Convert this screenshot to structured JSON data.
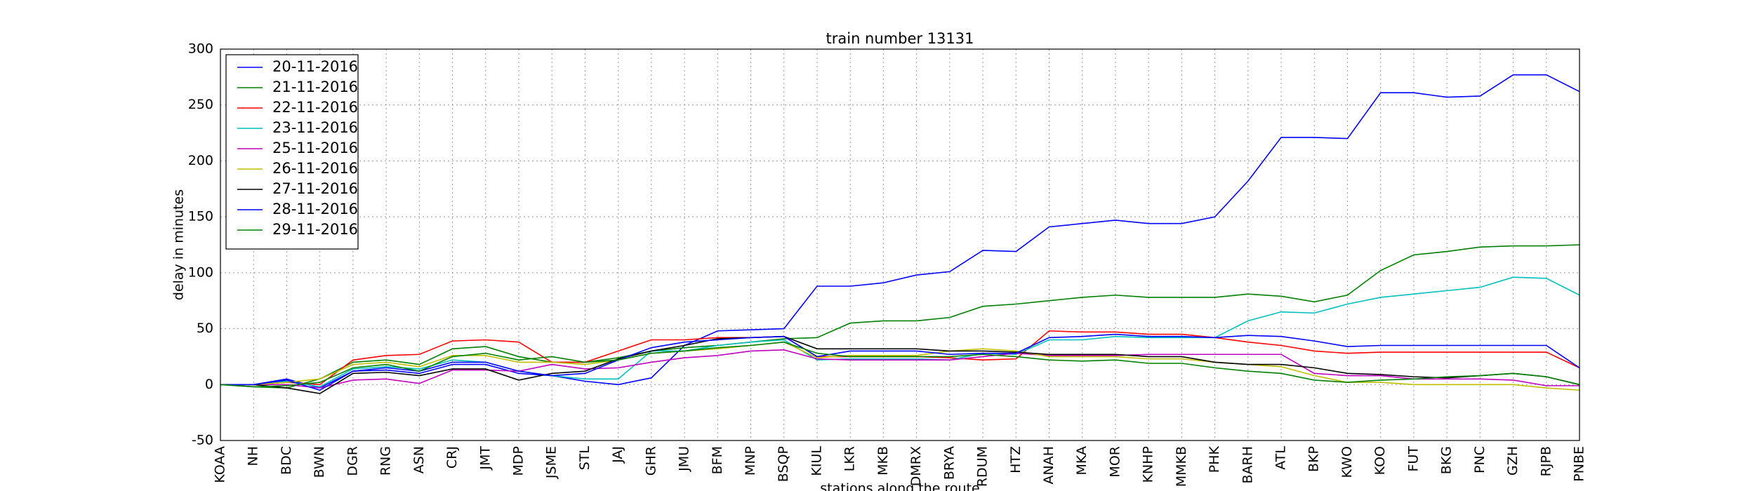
{
  "chart_data": {
    "type": "line",
    "title": "train number 13131",
    "xlabel": "stations along the route",
    "ylabel": "delay in minutes",
    "categories": [
      "KOAA",
      "NH",
      "BDC",
      "BWN",
      "DGR",
      "RNG",
      "ASN",
      "CRJ",
      "JMT",
      "MDP",
      "JSME",
      "STL",
      "JAJ",
      "GHR",
      "JMU",
      "BFM",
      "MNP",
      "BSQP",
      "KIUL",
      "LKR",
      "MKB",
      "DMRX",
      "BRYA",
      "RDUM",
      "HTZ",
      "ANAH",
      "MKA",
      "MOR",
      "KNHP",
      "MMKB",
      "PHK",
      "BARH",
      "ATL",
      "BKP",
      "KWO",
      "KOO",
      "FUT",
      "BKG",
      "PNC",
      "GZH",
      "RJPB",
      "PNBE"
    ],
    "series": [
      {
        "name": "20-11-2016",
        "color": "#0000ff",
        "values": [
          0,
          0,
          5,
          -3,
          12,
          13,
          10,
          18,
          18,
          10,
          8,
          3,
          0,
          6,
          35,
          48,
          49,
          50,
          88,
          88,
          91,
          98,
          101,
          120,
          119,
          141,
          144,
          147,
          144,
          144,
          150,
          182,
          221,
          221,
          220,
          261,
          261,
          257,
          258,
          277,
          277,
          262
        ]
      },
      {
        "name": "21-11-2016",
        "color": "#008000",
        "values": [
          0,
          -2,
          -3,
          5,
          20,
          22,
          18,
          32,
          34,
          25,
          20,
          20,
          24,
          30,
          33,
          35,
          38,
          41,
          42,
          55,
          57,
          57,
          60,
          70,
          72,
          75,
          78,
          80,
          78,
          78,
          78,
          81,
          79,
          74,
          80,
          102,
          116,
          119,
          123,
          124,
          124,
          125
        ]
      },
      {
        "name": "22-11-2016",
        "color": "#ff0000",
        "values": [
          0,
          0,
          2,
          0,
          22,
          26,
          27,
          39,
          40,
          38,
          20,
          20,
          30,
          40,
          40,
          42,
          42,
          43,
          25,
          25,
          25,
          25,
          24,
          22,
          23,
          48,
          47,
          47,
          45,
          45,
          42,
          38,
          35,
          30,
          28,
          29,
          29,
          29,
          29,
          29,
          29,
          15
        ]
      },
      {
        "name": "23-11-2016",
        "color": "#00bfbf",
        "values": [
          0,
          0,
          3,
          -2,
          14,
          16,
          14,
          22,
          20,
          12,
          8,
          5,
          5,
          30,
          30,
          35,
          38,
          40,
          22,
          23,
          23,
          23,
          22,
          28,
          27,
          40,
          40,
          43,
          42,
          42,
          42,
          57,
          65,
          64,
          72,
          78,
          81,
          84,
          87,
          96,
          95,
          80
        ]
      },
      {
        "name": "25-11-2016",
        "color": "#bf00bf",
        "values": [
          0,
          0,
          0,
          -3,
          4,
          5,
          1,
          13,
          13,
          12,
          18,
          14,
          15,
          20,
          24,
          26,
          30,
          31,
          23,
          22,
          22,
          22,
          22,
          25,
          28,
          26,
          26,
          26,
          27,
          27,
          27,
          27,
          27,
          10,
          8,
          8,
          5,
          5,
          5,
          4,
          -1,
          -1
        ]
      },
      {
        "name": "26-11-2016",
        "color": "#bfbf00",
        "values": [
          0,
          0,
          2,
          5,
          18,
          20,
          16,
          26,
          26,
          20,
          20,
          18,
          22,
          28,
          30,
          32,
          35,
          38,
          24,
          26,
          26,
          26,
          30,
          32,
          30,
          25,
          25,
          25,
          23,
          23,
          20,
          18,
          16,
          8,
          2,
          2,
          0,
          0,
          0,
          0,
          -3,
          -5
        ]
      },
      {
        "name": "27-11-2016",
        "color": "#000000",
        "values": [
          0,
          0,
          -3,
          -8,
          10,
          11,
          8,
          14,
          14,
          4,
          10,
          12,
          23,
          30,
          35,
          41,
          42,
          43,
          32,
          32,
          32,
          32,
          30,
          30,
          29,
          27,
          27,
          27,
          25,
          25,
          20,
          18,
          18,
          15,
          10,
          9,
          7,
          6,
          8,
          10,
          7,
          0
        ]
      },
      {
        "name": "28-11-2016",
        "color": "#0000ff",
        "values": [
          0,
          0,
          4,
          -5,
          12,
          15,
          12,
          20,
          20,
          12,
          8,
          10,
          22,
          33,
          38,
          40,
          42,
          43,
          25,
          30,
          30,
          30,
          27,
          28,
          28,
          42,
          43,
          45,
          43,
          43,
          42,
          44,
          43,
          39,
          34,
          35,
          35,
          35,
          35,
          35,
          35,
          15
        ]
      },
      {
        "name": "29-11-2016",
        "color": "#008000",
        "values": [
          0,
          -2,
          -1,
          2,
          15,
          18,
          12,
          25,
          28,
          22,
          25,
          20,
          22,
          28,
          30,
          33,
          35,
          38,
          28,
          25,
          25,
          25,
          25,
          27,
          25,
          22,
          21,
          22,
          19,
          19,
          15,
          12,
          10,
          4,
          2,
          4,
          5,
          7,
          8,
          10,
          7,
          0
        ]
      }
    ],
    "ylim": [
      -50,
      300
    ],
    "yticks": [
      -50,
      0,
      50,
      100,
      150,
      200,
      250,
      300
    ],
    "grid": true,
    "legend": "upper left"
  }
}
